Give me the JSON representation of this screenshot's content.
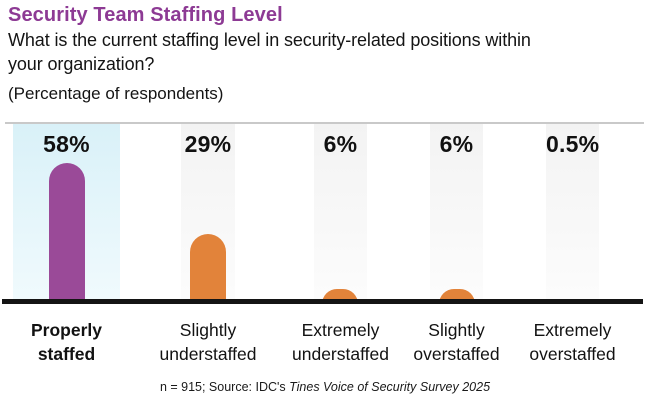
{
  "header": {
    "title": "Security Team Staffing Level",
    "question_lines": [
      "What is the current staffing level in security-related positions within",
      "your organization?"
    ],
    "note": "(Percentage of respondents)"
  },
  "chart_data": {
    "type": "bar",
    "title": "Security Team Staffing Level",
    "subtitle": "What is the current staffing level in security-related positions within your organization?",
    "units_note": "(Percentage of respondents)",
    "categories": [
      "Properly staffed",
      "Slightly understaffed",
      "Extremely understaffed",
      "Slightly overstaffed",
      "Extremely overstaffed"
    ],
    "values": [
      58,
      29,
      6,
      6,
      0.5
    ],
    "value_labels": [
      "58%",
      "29%",
      "6%",
      "6%",
      "0.5%"
    ],
    "ylim": [
      0,
      60
    ],
    "grid": false,
    "legend": "none",
    "bar_style": "rounded-top",
    "columns": [
      {
        "label_lines": [
          "Properly",
          "staffed"
        ],
        "label_bold": true,
        "value": 58,
        "value_label": "58%",
        "bar_color": "#9a4a98",
        "band_top": "#d9f1f8",
        "band_bottom": "#f0fafd",
        "highlighted": true
      },
      {
        "label_lines": [
          "Slightly",
          "understaffed"
        ],
        "label_bold": false,
        "value": 29,
        "value_label": "29%",
        "bar_color": "#e2833a",
        "band_top": "#f3f3f3",
        "band_bottom": "#fcfcfc",
        "highlighted": false
      },
      {
        "label_lines": [
          "Extremely",
          "understaffed"
        ],
        "label_bold": false,
        "value": 6,
        "value_label": "6%",
        "bar_color": "#e2833a",
        "band_top": "#f3f3f3",
        "band_bottom": "#fcfcfc",
        "highlighted": false
      },
      {
        "label_lines": [
          "Slightly",
          "overstaffed"
        ],
        "label_bold": false,
        "value": 6,
        "value_label": "6%",
        "bar_color": "#e2833a",
        "band_top": "#f3f3f3",
        "band_bottom": "#fcfcfc",
        "highlighted": false
      },
      {
        "label_lines": [
          "Extremely",
          "overstaffed"
        ],
        "label_bold": false,
        "value": 0.5,
        "value_label": "0.5%",
        "bar_color": "#e2833a",
        "band_top": "#f3f3f3",
        "band_bottom": "#fcfcfc",
        "highlighted": false
      }
    ]
  },
  "footnote": {
    "prefix": "n = 915; Source: IDC's ",
    "source_italic": "Tines Voice of Security Survey 2025"
  },
  "colors": {
    "title_purple": "#8d3a94",
    "bar_purple": "#9a4a98",
    "bar_orange": "#e2833a",
    "highlight_band": "#d9f1f8",
    "neutral_band": "#f3f3f3",
    "baseline": "#141414",
    "top_rule": "#c9c9c9",
    "text": "#141414"
  }
}
